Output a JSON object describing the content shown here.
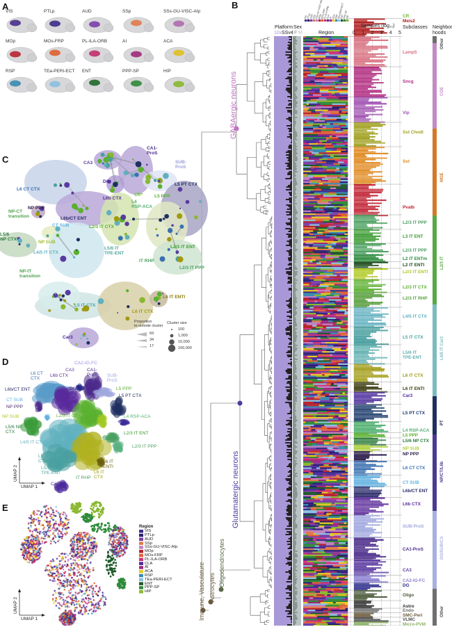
{
  "panels": {
    "a": "A",
    "b": "B",
    "c": "C",
    "d": "D",
    "e": "E"
  },
  "panel_a": {
    "regions": [
      {
        "label": "VIS",
        "color": "#4a2f8a"
      },
      {
        "label": "PTLp",
        "color": "#3b2f86"
      },
      {
        "label": "AUD",
        "color": "#7b3fa8"
      },
      {
        "label": "SSp",
        "color": "#e07a4a"
      },
      {
        "label": "SSs-GU-VISC-AIp",
        "color": "#b06ab0"
      },
      {
        "label": "MOp",
        "color": "#b8252f"
      },
      {
        "label": "MOs-FRP",
        "color": "#e06030"
      },
      {
        "label": "PL-ILA-ORB",
        "color": "#c2306a"
      },
      {
        "label": "AI",
        "color": "#a02a7a"
      },
      {
        "label": "ACA",
        "color": "#e0c020"
      },
      {
        "label": "RSP",
        "color": "#3a8ab0"
      },
      {
        "label": "TEa-PERI-ECT",
        "color": "#8ac0e0"
      },
      {
        "label": "ENT",
        "color": "#1f6a2a"
      },
      {
        "label": "PPP-SP",
        "color": "#2f8a3a"
      },
      {
        "label": "HIP",
        "color": "#8ab830"
      }
    ]
  },
  "panel_b": {
    "headers": {
      "platform": "Platform",
      "platform_10x": "10x",
      "platform_ssv4": "SSv4",
      "sex": "Sex",
      "sex_f": "F",
      "sex_m": "M",
      "region": "Region",
      "samples": "Samples (log₁₀)",
      "subclasses": "Subclasses",
      "neighborhoods": "Neighbor-\nhoods"
    },
    "samples_ticks": [
      "0",
      "1",
      "2",
      "3",
      "4",
      "5"
    ],
    "region_ticks": [
      "VIS",
      "PTLp",
      "AUD",
      "SSp",
      "SSs-GU-VISC-AIp",
      "MOp",
      "MOs-FRP",
      "PL-ILA-ORB",
      "CLA",
      "AI",
      "ACA",
      "RSP",
      "TEa-PERI-ECT",
      "ENT",
      "PPP-SP",
      "HIP"
    ],
    "classes": [
      {
        "label": "GABAergic neurons",
        "color": "#c070c0"
      },
      {
        "label": "Glutamatergic neurons",
        "color": "#4a3aa0"
      },
      {
        "label": "Oligodendrocytes",
        "color": "#5a6a4a"
      },
      {
        "label": "Astrocytes",
        "color": "#6a5a3a"
      },
      {
        "label": "Immune, Vasculature",
        "color": "#6a5a3a"
      }
    ],
    "subclasses": [
      {
        "label": "CR",
        "color": "#6ab82a"
      },
      {
        "label": "Meis2",
        "color": "#b01a1a"
      },
      {
        "label": "Lamp5",
        "color": "#d87080"
      },
      {
        "label": "Sncg",
        "color": "#b02a80"
      },
      {
        "label": "Vip",
        "color": "#a050b0"
      },
      {
        "label": "Sst Chodl",
        "color": "#a0a020"
      },
      {
        "label": "Sst",
        "color": "#e08a20"
      },
      {
        "label": "Pvalb",
        "color": "#c02030"
      },
      {
        "label": "L2/3 IT PPP",
        "color": "#4aa060"
      },
      {
        "label": "L3 IT ENT",
        "color": "#3a9a30"
      },
      {
        "label": "L2/3 IT PPP",
        "color": "#4aa060"
      },
      {
        "label": "L2 IT ENTm",
        "color": "#2a8a3a"
      },
      {
        "label": "L2 IT ENTl",
        "color": "#1a4a1a"
      },
      {
        "label": "L2/3 IT ENTl",
        "color": "#b0c820"
      },
      {
        "label": "L2/3 IT CTX",
        "color": "#5ab030"
      },
      {
        "label": "L2/3 IT RHP",
        "color": "#5aa040"
      },
      {
        "label": "L4/5 IT CTX",
        "color": "#60b0c0"
      },
      {
        "label": "L5 IT CTX",
        "color": "#4aa0a0"
      },
      {
        "label": "L5/6 IT\nTPE-ENT",
        "color": "#60b0b0"
      },
      {
        "label": "L6 IT CTX",
        "color": "#a09a10"
      },
      {
        "label": "L6 IT ENTl",
        "color": "#3a3a10"
      },
      {
        "label": "Car3",
        "color": "#4a2a9a"
      },
      {
        "label": "L5 PT CTX",
        "color": "#1a3a6a"
      },
      {
        "label": "L4 RSP-ACA",
        "color": "#50b070"
      },
      {
        "label": "L5 PPP",
        "color": "#5ab030"
      },
      {
        "label": "L5/6 NP CTX",
        "color": "#2a7a3a"
      },
      {
        "label": "NP SUB",
        "color": "#b0d040"
      },
      {
        "label": "NP PPP",
        "color": "#2a1a4a"
      },
      {
        "label": "L6 CT CTX",
        "color": "#3a70b0"
      },
      {
        "label": "CT SUB",
        "color": "#60b0e0"
      },
      {
        "label": "L6b/CT ENT",
        "color": "#2a2a6a"
      },
      {
        "label": "L6b CTX",
        "color": "#5a2a9a"
      },
      {
        "label": "SUB-ProS",
        "color": "#a0a8e0"
      },
      {
        "label": "CA1-ProS",
        "color": "#4a2a8a"
      },
      {
        "label": "CA3",
        "color": "#5a3aa0"
      },
      {
        "label": "CA2-IG-FC",
        "color": "#8a80d0"
      },
      {
        "label": "DG",
        "color": "#2a2a8a"
      },
      {
        "label": "Oligo",
        "color": "#4a5a3a"
      },
      {
        "label": "Astro",
        "color": "#2a2a2a"
      },
      {
        "label": "Endo",
        "color": "#6a6a6a"
      },
      {
        "label": "SMC-Peri",
        "color": "#6a5a3a"
      },
      {
        "label": "VLMC",
        "color": "#4a4a4a"
      },
      {
        "label": "Micro-PVM",
        "color": "#8ab060"
      }
    ],
    "neighborhoods": [
      {
        "label": "Other",
        "color": "#6f6f6f"
      },
      {
        "label": "CGE",
        "color": "#c48ac4"
      },
      {
        "label": "MGE",
        "color": "#d27a28"
      },
      {
        "label": "L2/3 IT",
        "color": "#5aa845"
      },
      {
        "label": "L4/5 IT Car3",
        "color": "#7abcc0"
      },
      {
        "label": "PT",
        "color": "#1f3060"
      },
      {
        "label": "NP/CT/L6b",
        "color": "#4a3a90"
      },
      {
        "label": "DG/SUB/CA",
        "color": "#a8b0e0"
      },
      {
        "label": "Other",
        "color": "#6f6f6f"
      }
    ]
  },
  "panel_c": {
    "labels": [
      {
        "text": "CA3",
        "color": "#5a3aa0"
      },
      {
        "text": "CA1-\nProS",
        "color": "#4a2a8a"
      },
      {
        "text": "SUB-\nProS",
        "color": "#9aa0dd"
      },
      {
        "text": "DG",
        "color": "#4a2a9a"
      },
      {
        "text": "L6 CT CTX",
        "color": "#3a70b0"
      },
      {
        "text": "L6b CTX",
        "color": "#5a2a9a"
      },
      {
        "text": "L5 PT CTX",
        "color": "#1f3060"
      },
      {
        "text": "CR*",
        "color": "#6ab82a"
      },
      {
        "text": "L5 PPP",
        "color": "#5ab030"
      },
      {
        "text": "L4\nRSP-ACA",
        "color": "#50b070"
      },
      {
        "text": "NP PPP",
        "color": "#2a1a4a"
      },
      {
        "text": "NP-CT\ntransition",
        "color": "#50a050"
      },
      {
        "text": "L6b/CT ENT",
        "color": "#2a2a6a"
      },
      {
        "text": "CT SUB",
        "color": "#60b0e0"
      },
      {
        "text": "L2/3 IT CTX",
        "color": "#5ab030"
      },
      {
        "text": "NP SUB",
        "color": "#a0c030"
      },
      {
        "text": "L5/6\nNP CTX",
        "color": "#2a7a3a"
      },
      {
        "text": "L2/3 IT ENT",
        "color": "#3a9a30"
      },
      {
        "text": "L4/5 IT CTX",
        "color": "#60b0c0"
      },
      {
        "text": "L5/6 IT\nTPE-ENT",
        "color": "#50a8a0"
      },
      {
        "text": "IT RHP",
        "color": "#4aa060"
      },
      {
        "text": "L2/3 IT PPP",
        "color": "#4aa060"
      },
      {
        "text": "NP-IT\ntransition",
        "color": "#50a050"
      },
      {
        "text": "L6 IT ENTl",
        "color": "#8a7a10"
      },
      {
        "text": "L5 IT CTX",
        "color": "#4aa0a0"
      },
      {
        "text": "L6 IT CTX",
        "color": "#a09a10"
      },
      {
        "text": "Car3",
        "color": "#4a2a9a"
      }
    ],
    "legend": {
      "proportion_title": "Proportion\nto outside cluster",
      "proportion_values": [
        "69",
        "34",
        "17"
      ],
      "size_title": "Cluster size",
      "size_values": [
        "100",
        "1,000",
        "10,000",
        "100,000"
      ]
    }
  },
  "panel_d": {
    "labels": [
      {
        "text": "CA2-IG-FC",
        "color": "#9a90dd"
      },
      {
        "text": "CA3",
        "color": "#5a3aa0"
      },
      {
        "text": "CA1-\nProS",
        "color": "#4a2a8a"
      },
      {
        "text": "L6 CT\nCTX",
        "color": "#3a70b0"
      },
      {
        "text": "L6b CTX",
        "color": "#5a2a9a"
      },
      {
        "text": "SUB-\nProS",
        "color": "#a0a8e0"
      },
      {
        "text": "DG",
        "color": "#2a2a8a"
      },
      {
        "text": "L6b/CT ENT",
        "color": "#2a2a6a"
      },
      {
        "text": "L5 PPP",
        "color": "#5ab030"
      },
      {
        "text": "L5 PT CTX",
        "color": "#1f3060"
      },
      {
        "text": "CT SUB",
        "color": "#60b0e0"
      },
      {
        "text": "NP PPP",
        "color": "#4a2a6a"
      },
      {
        "text": "L2/3 IT CTX",
        "color": "#5ab030"
      },
      {
        "text": "L4 RSP-ACA",
        "color": "#50b070"
      },
      {
        "text": "NP SUB",
        "color": "#b0c820"
      },
      {
        "text": "L5/6 NP\nCTX",
        "color": "#2a7a3a"
      },
      {
        "text": "L2/3 IT ENT",
        "color": "#3a9a30"
      },
      {
        "text": "L4/5 IT CTX",
        "color": "#60b0c0"
      },
      {
        "text": "L2/3 IT PPP",
        "color": "#4aa060"
      },
      {
        "text": "L5 IT\nCTX",
        "color": "#4aa0a0"
      },
      {
        "text": "L6 IT\nENTl",
        "color": "#6a6010"
      },
      {
        "text": "L5/6 IT\nTPE-ENT",
        "color": "#50a8a0"
      },
      {
        "text": "L6 IT\nCTX",
        "color": "#a09a10"
      },
      {
        "text": "IT RHP",
        "color": "#4aa060"
      },
      {
        "text": "Car3",
        "color": "#4a2a9a"
      }
    ],
    "axis_x": "UMAP 1",
    "axis_y": "UMAP 2"
  },
  "panel_e": {
    "legend_title": "Region",
    "legend": [
      {
        "label": "VIS",
        "color": "#3a2f8a"
      },
      {
        "label": "PTLp",
        "color": "#2a2070"
      },
      {
        "label": "AUD",
        "color": "#7b3fa8"
      },
      {
        "label": "SSp",
        "color": "#e07a4a"
      },
      {
        "label": "SSs-GU-VISC-AIp",
        "color": "#c080c0"
      },
      {
        "label": "MOp",
        "color": "#b8252f"
      },
      {
        "label": "MOs-FRP",
        "color": "#e06030"
      },
      {
        "label": "PL-ILA-ORB",
        "color": "#d0307a"
      },
      {
        "label": "CLA",
        "color": "#4a2a9a"
      },
      {
        "label": "AI",
        "color": "#a02a7a"
      },
      {
        "label": "ACA",
        "color": "#e8c820"
      },
      {
        "label": "RSP",
        "color": "#3a8ab0"
      },
      {
        "label": "TEa-PERI-ECT",
        "color": "#8ac0e0"
      },
      {
        "label": "ENT",
        "color": "#1f5a2a"
      },
      {
        "label": "PPP-SP",
        "color": "#2f8a3a"
      },
      {
        "label": "HIP",
        "color": "#8ab830"
      }
    ],
    "axis_x": "UMAP 1",
    "axis_y": "UMAP 2"
  }
}
